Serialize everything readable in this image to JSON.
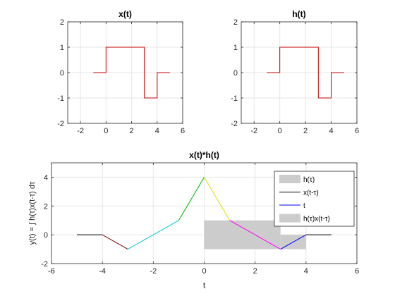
{
  "chart_data": [
    {
      "type": "line",
      "title": "x(t)",
      "xlabel": "",
      "ylabel": "",
      "xlim": [
        -3,
        6
      ],
      "ylim": [
        -2,
        2
      ],
      "grid": true,
      "xticks": [
        -2,
        0,
        2,
        4,
        6
      ],
      "yticks": [
        -2,
        -1,
        0,
        1,
        2
      ],
      "x_tick_labels": [
        "-2",
        "0",
        "2",
        "4",
        "6"
      ],
      "y_tick_labels": [
        "-2",
        "-1",
        "0",
        "1",
        "2"
      ],
      "series": [
        {
          "color": "#c00000",
          "x": [
            -1,
            0,
            0,
            3,
            3,
            4,
            4,
            5
          ],
          "y": [
            0,
            0,
            1,
            1,
            -1,
            -1,
            0,
            0
          ]
        }
      ]
    },
    {
      "type": "line",
      "title": "h(t)",
      "xlabel": "",
      "ylabel": "",
      "xlim": [
        -3,
        6
      ],
      "ylim": [
        -2,
        2
      ],
      "grid": true,
      "xticks": [
        -2,
        0,
        2,
        4,
        6
      ],
      "yticks": [
        -2,
        -1,
        0,
        1,
        2
      ],
      "x_tick_labels": [
        "-2",
        "0",
        "2",
        "4",
        "6"
      ],
      "y_tick_labels": [
        "-2",
        "-1",
        "0",
        "1",
        "2"
      ],
      "series": [
        {
          "color": "#c00000",
          "x": [
            -1,
            0,
            0,
            3,
            3,
            4,
            4,
            5
          ],
          "y": [
            0,
            0,
            1,
            1,
            -1,
            -1,
            0,
            0
          ]
        }
      ]
    },
    {
      "type": "line",
      "title": "x(t)*h(t)",
      "xlabel": "t",
      "ylabel": "y(t) = ∫ h(τ)x(t-τ) dτ",
      "xlim": [
        -6,
        6
      ],
      "ylim": [
        -2,
        5
      ],
      "grid": true,
      "xticks": [
        -6,
        -4,
        -2,
        0,
        2,
        4,
        6
      ],
      "yticks": [
        -2,
        0,
        2,
        4
      ],
      "x_tick_labels": [
        "-6",
        "-4",
        "-2",
        "0",
        "2",
        "4",
        "6"
      ],
      "y_tick_labels": [
        "-2",
        "0",
        "2",
        "4"
      ],
      "legend_position": "top-right",
      "legend": [
        {
          "label": "h(τ)",
          "kind": "patch",
          "color": "#cccccc"
        },
        {
          "label": "x(t-τ)",
          "kind": "line",
          "color": "#000000"
        },
        {
          "label": "t",
          "kind": "line",
          "color": "#0000ff"
        },
        {
          "label": "h(τ)x(t-τ)",
          "kind": "patch",
          "color": "#cccccc"
        }
      ],
      "shaded_regions": [
        {
          "x": [
            0,
            3
          ],
          "y": [
            -1,
            1
          ],
          "color": "#cccccc"
        },
        {
          "x": [
            3,
            4
          ],
          "y": [
            -1,
            0
          ],
          "color": "#cccccc"
        }
      ],
      "segments": [
        {
          "color": "#000000",
          "x": [
            -5,
            -4
          ],
          "y": [
            0,
            0
          ]
        },
        {
          "color": "#800000",
          "x": [
            -4,
            -3
          ],
          "y": [
            0,
            -1
          ]
        },
        {
          "color": "#00cccc",
          "x": [
            -3,
            -1
          ],
          "y": [
            -1,
            1
          ]
        },
        {
          "color": "#00b000",
          "x": [
            -1,
            0
          ],
          "y": [
            1,
            4
          ]
        },
        {
          "color": "#dddd00",
          "x": [
            0,
            1
          ],
          "y": [
            4,
            1
          ]
        },
        {
          "color": "#ff00ff",
          "x": [
            1,
            3
          ],
          "y": [
            1,
            -1
          ]
        },
        {
          "color": "#0000ff",
          "x": [
            3,
            4
          ],
          "y": [
            -1,
            0
          ]
        },
        {
          "color": "#000000",
          "x": [
            4,
            5
          ],
          "y": [
            0,
            0
          ]
        }
      ]
    }
  ]
}
